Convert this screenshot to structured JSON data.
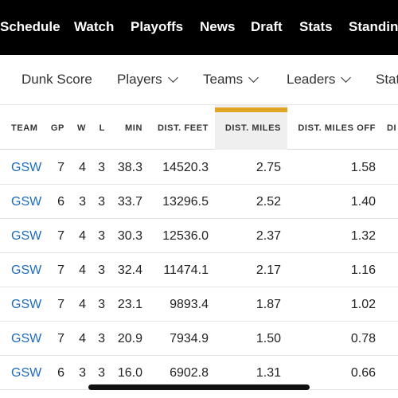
{
  "top_nav": [
    "Schedule",
    "Watch",
    "Playoffs",
    "News",
    "Draft",
    "Stats",
    "Standings"
  ],
  "sub_nav": [
    {
      "label": "Dunk Score",
      "dropdown": false
    },
    {
      "label": "Players",
      "dropdown": true
    },
    {
      "label": "Teams",
      "dropdown": true
    },
    {
      "label": "Leaders",
      "dropdown": true
    },
    {
      "label": "Stats",
      "dropdown": false
    }
  ],
  "table": {
    "active_column": "DIST. MILES",
    "accent_color": "#e0a524",
    "link_color": "#1c6bbf",
    "headers": [
      "TEAM",
      "GP",
      "W",
      "L",
      "MIN",
      "DIST. FEET",
      "DIST. MILES",
      "DIST. MILES OFF",
      "DI"
    ],
    "rows": [
      [
        "GSW",
        "7",
        "4",
        "3",
        "38.3",
        "14520.3",
        "2.75",
        "1.58"
      ],
      [
        "GSW",
        "6",
        "3",
        "3",
        "33.7",
        "13296.5",
        "2.52",
        "1.40"
      ],
      [
        "GSW",
        "7",
        "4",
        "3",
        "30.3",
        "12536.0",
        "2.37",
        "1.32"
      ],
      [
        "GSW",
        "7",
        "4",
        "3",
        "32.4",
        "11474.1",
        "2.17",
        "1.16"
      ],
      [
        "GSW",
        "7",
        "4",
        "3",
        "23.1",
        "9893.4",
        "1.87",
        "1.02"
      ],
      [
        "GSW",
        "7",
        "4",
        "3",
        "20.9",
        "7934.9",
        "1.50",
        "0.78"
      ],
      [
        "GSW",
        "6",
        "3",
        "3",
        "16.0",
        "6902.8",
        "1.31",
        "0.66"
      ]
    ]
  }
}
